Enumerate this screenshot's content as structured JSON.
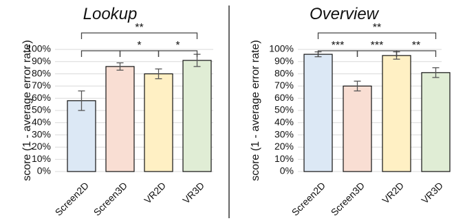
{
  "chart_data": [
    {
      "type": "bar",
      "title": "Lookup",
      "ylabel": "score (1 - average error rate)",
      "xlabel": "",
      "ylim": [
        0,
        100
      ],
      "y_ticks": [
        "0%",
        "10%",
        "20%",
        "30%",
        "40%",
        "50%",
        "60%",
        "70%",
        "80%",
        "90%",
        "100%"
      ],
      "grid": true,
      "categories": [
        "Screen2D",
        "Screen3D",
        "VR2D",
        "VR3D"
      ],
      "values": [
        58,
        86,
        80,
        91
      ],
      "errors": [
        8,
        3,
        4,
        5
      ],
      "colors": [
        "#dce8f5",
        "#f9ded3",
        "#fff0c4",
        "#e0edd5"
      ],
      "significance": [
        {
          "from": 0,
          "to": 3,
          "label": "**",
          "level": 1
        },
        {
          "from": 0,
          "to": 1,
          "label": "",
          "level": 0
        },
        {
          "from": 1,
          "to": 2,
          "label": "*",
          "level": 0
        },
        {
          "from": 2,
          "to": 3,
          "label": "*",
          "level": 0
        }
      ]
    },
    {
      "type": "bar",
      "title": "Overview",
      "ylabel": "score (1 - average error rate)",
      "xlabel": "",
      "ylim": [
        0,
        100
      ],
      "y_ticks": [
        "0%",
        "10%",
        "20%",
        "30%",
        "40%",
        "50%",
        "60%",
        "70%",
        "80%",
        "90%",
        "100%"
      ],
      "grid": true,
      "categories": [
        "Screen2D",
        "Screen3D",
        "VR2D",
        "VR3D"
      ],
      "values": [
        96,
        70,
        95,
        81
      ],
      "errors": [
        2,
        4,
        3,
        4
      ],
      "colors": [
        "#dce8f5",
        "#f9ded3",
        "#fff0c4",
        "#e0edd5"
      ],
      "significance": [
        {
          "from": 0,
          "to": 3,
          "label": "**",
          "level": 1
        },
        {
          "from": 0,
          "to": 1,
          "label": "***",
          "level": 0
        },
        {
          "from": 1,
          "to": 2,
          "label": "***",
          "level": 0
        },
        {
          "from": 2,
          "to": 3,
          "label": "**",
          "level": 0
        }
      ]
    }
  ]
}
